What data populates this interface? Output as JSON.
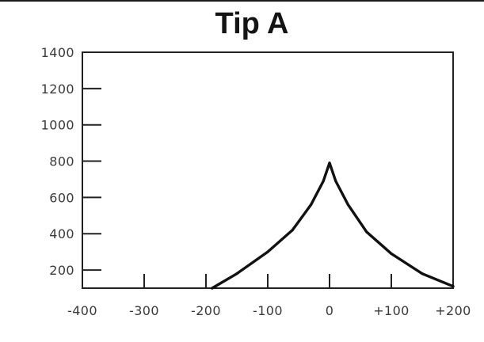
{
  "chart_data": {
    "type": "line",
    "title": "Tip A",
    "xlabel": "",
    "ylabel": "",
    "xlim": [
      -400,
      200
    ],
    "ylim": [
      100,
      1400
    ],
    "x_ticks": [
      -400,
      -300,
      -200,
      -100,
      0,
      100,
      200
    ],
    "x_tick_labels": [
      "-400",
      "-300",
      "-200",
      "-100",
      "0",
      "+100",
      "+200"
    ],
    "y_ticks": [
      200,
      400,
      600,
      800,
      1000,
      1200,
      1400
    ],
    "y_tick_labels": [
      "200",
      "400",
      "600",
      "800",
      "1000",
      "1200",
      "1400"
    ],
    "grid": false,
    "series": [
      {
        "x": [
          -190,
          -150,
          -100,
          -60,
          -30,
          -10,
          0,
          10,
          30,
          60,
          100,
          150,
          200
        ],
        "y": [
          100,
          180,
          300,
          420,
          560,
          690,
          790,
          690,
          560,
          410,
          290,
          180,
          110
        ]
      }
    ]
  }
}
